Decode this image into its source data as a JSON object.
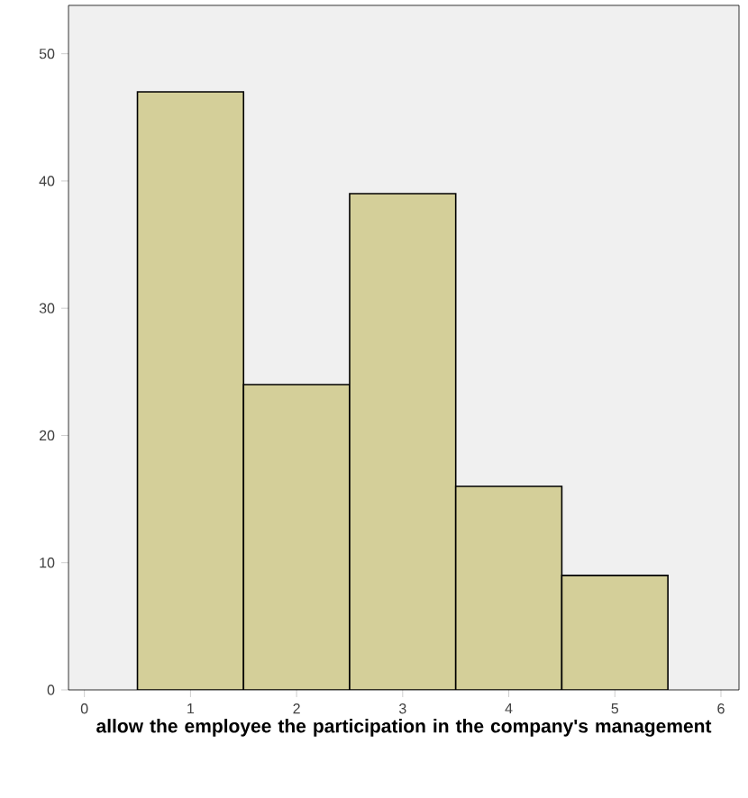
{
  "chart_data": {
    "type": "histogram",
    "xlabel": "allow the employee the participation in the company's management",
    "bins": [
      0.5,
      1.5,
      2.5,
      3.5,
      4.5,
      5.5
    ],
    "values": [
      47,
      24,
      39,
      16,
      9
    ],
    "color": "#d4cf99",
    "xlim": [
      -0.15,
      6.17
    ],
    "ylim": [
      0,
      53.8
    ],
    "xticks": [
      0,
      1,
      2,
      3,
      4,
      5,
      6
    ],
    "yticks": [
      0,
      10,
      20,
      30,
      40,
      50
    ]
  }
}
